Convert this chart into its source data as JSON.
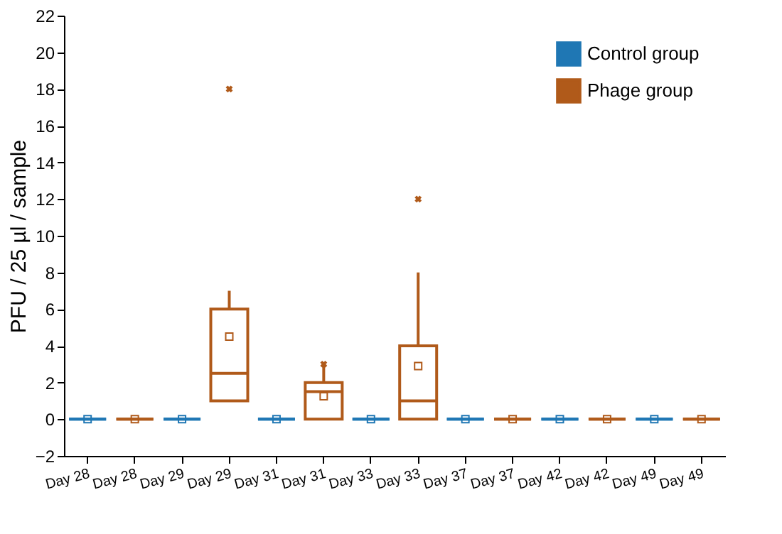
{
  "chart_data": {
    "type": "box",
    "ylabel": "PFU / 25 µl / sample",
    "categories": [
      "Day 28",
      "Day 28",
      "Day 29",
      "Day 29",
      "Day 31",
      "Day 31",
      "Day 33",
      "Day 33",
      "Day 37",
      "Day 37",
      "Day 42",
      "Day 42",
      "Day 49",
      "Day 49"
    ],
    "ylim": [
      -2,
      22
    ],
    "yticks": [
      -2,
      0,
      2,
      4,
      6,
      8,
      10,
      12,
      14,
      16,
      18,
      20,
      22
    ],
    "legend": "top right",
    "grid": false,
    "series": [
      {
        "name": "Control group",
        "color": "#1f77b4",
        "boxes": [
          {
            "low": 0,
            "q1": 0,
            "median": 0,
            "q3": 0,
            "high": 0,
            "mean": 0
          },
          null,
          {
            "low": 0,
            "q1": 0,
            "median": 0,
            "q3": 0,
            "high": 0,
            "mean": 0
          },
          null,
          {
            "low": 0,
            "q1": 0,
            "median": 0,
            "q3": 0,
            "high": 0,
            "mean": 0
          },
          null,
          {
            "low": 0,
            "q1": 0,
            "median": 0,
            "q3": 0,
            "high": 0,
            "mean": 0
          },
          null,
          {
            "low": 0,
            "q1": 0,
            "median": 0,
            "q3": 0,
            "high": 0,
            "mean": 0
          },
          null,
          {
            "low": 0,
            "q1": 0,
            "median": 0,
            "q3": 0,
            "high": 0,
            "mean": 0
          },
          null,
          {
            "low": 0,
            "q1": 0,
            "median": 0,
            "q3": 0,
            "high": 0,
            "mean": 0
          },
          null
        ]
      },
      {
        "name": "Phage group",
        "color": "#b05a1a",
        "boxes": [
          null,
          {
            "low": 0,
            "q1": 0,
            "median": 0,
            "q3": 0,
            "high": 0,
            "mean": 0
          },
          null,
          {
            "low": 1,
            "q1": 1,
            "median": 2.5,
            "q3": 6,
            "high": 7,
            "mean": 4.5,
            "outliers": [
              18
            ]
          },
          null,
          {
            "low": 0,
            "q1": 0,
            "median": 1.5,
            "q3": 2,
            "high": 3,
            "mean": 1.25,
            "outliers": [
              3
            ]
          },
          null,
          {
            "low": 0,
            "q1": 0,
            "median": 1,
            "q3": 4,
            "high": 8,
            "mean": 2.9,
            "outliers": [
              12
            ]
          },
          null,
          {
            "low": 0,
            "q1": 0,
            "median": 0,
            "q3": 0,
            "high": 0,
            "mean": 0
          },
          null,
          {
            "low": 0,
            "q1": 0,
            "median": 0,
            "q3": 0,
            "high": 0,
            "mean": 0
          },
          null,
          {
            "low": 0,
            "q1": 0,
            "median": 0,
            "q3": 0,
            "high": 0,
            "mean": 0
          }
        ]
      }
    ]
  }
}
